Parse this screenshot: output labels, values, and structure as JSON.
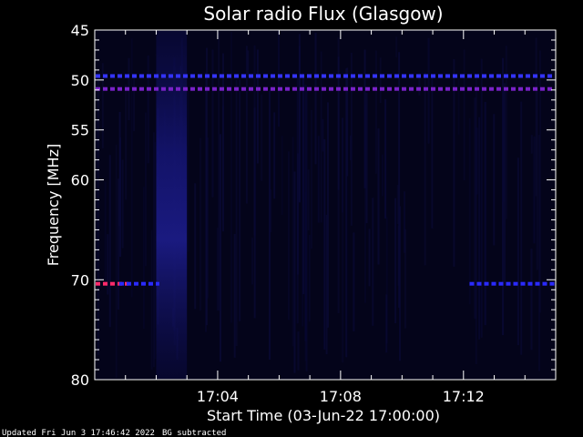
{
  "chart_data": {
    "type": "heatmap",
    "title": "Solar radio Flux (Glasgow)",
    "xlabel": "Start Time (03-Jun-22 17:00:00)",
    "ylabel": "Frequency [MHz]",
    "x_range_minutes": [
      0,
      15
    ],
    "ylim": [
      45,
      80
    ],
    "x_ticks": [
      {
        "minute": 4,
        "label": "17:04"
      },
      {
        "minute": 8,
        "label": "17:08"
      },
      {
        "minute": 12,
        "label": "17:12"
      }
    ],
    "y_ticks": [
      {
        "value": 45,
        "label": "45"
      },
      {
        "value": 50,
        "label": "50"
      },
      {
        "value": 55,
        "label": "55"
      },
      {
        "value": 60,
        "label": "60"
      },
      {
        "value": 70,
        "label": "70"
      },
      {
        "value": 80,
        "label": "80"
      }
    ],
    "background_color": "#04041a",
    "interference_lines": [
      {
        "freq_mhz": 49.6,
        "minute_start": 0,
        "minute_end": 15,
        "color": "#3333ff"
      },
      {
        "freq_mhz": 50.9,
        "minute_start": 0,
        "minute_end": 15,
        "color": "#7a22c8"
      },
      {
        "freq_mhz": 70.4,
        "minute_start": 0,
        "minute_end": 1.1,
        "color": "#ff2a6a"
      },
      {
        "freq_mhz": 70.4,
        "minute_start": 0.8,
        "minute_end": 2.1,
        "color": "#2a2aff"
      },
      {
        "freq_mhz": 70.4,
        "minute_start": 12.2,
        "minute_end": 15,
        "color": "#2a2aff"
      }
    ],
    "burst_column": {
      "minute_start": 2.0,
      "minute_end": 3.0,
      "freq_start": 45,
      "freq_end": 80,
      "color": "#101060"
    }
  },
  "footer": {
    "updated": "Updated Fri Jun  3 17:46:42 2022",
    "note": "BG subtracted"
  }
}
